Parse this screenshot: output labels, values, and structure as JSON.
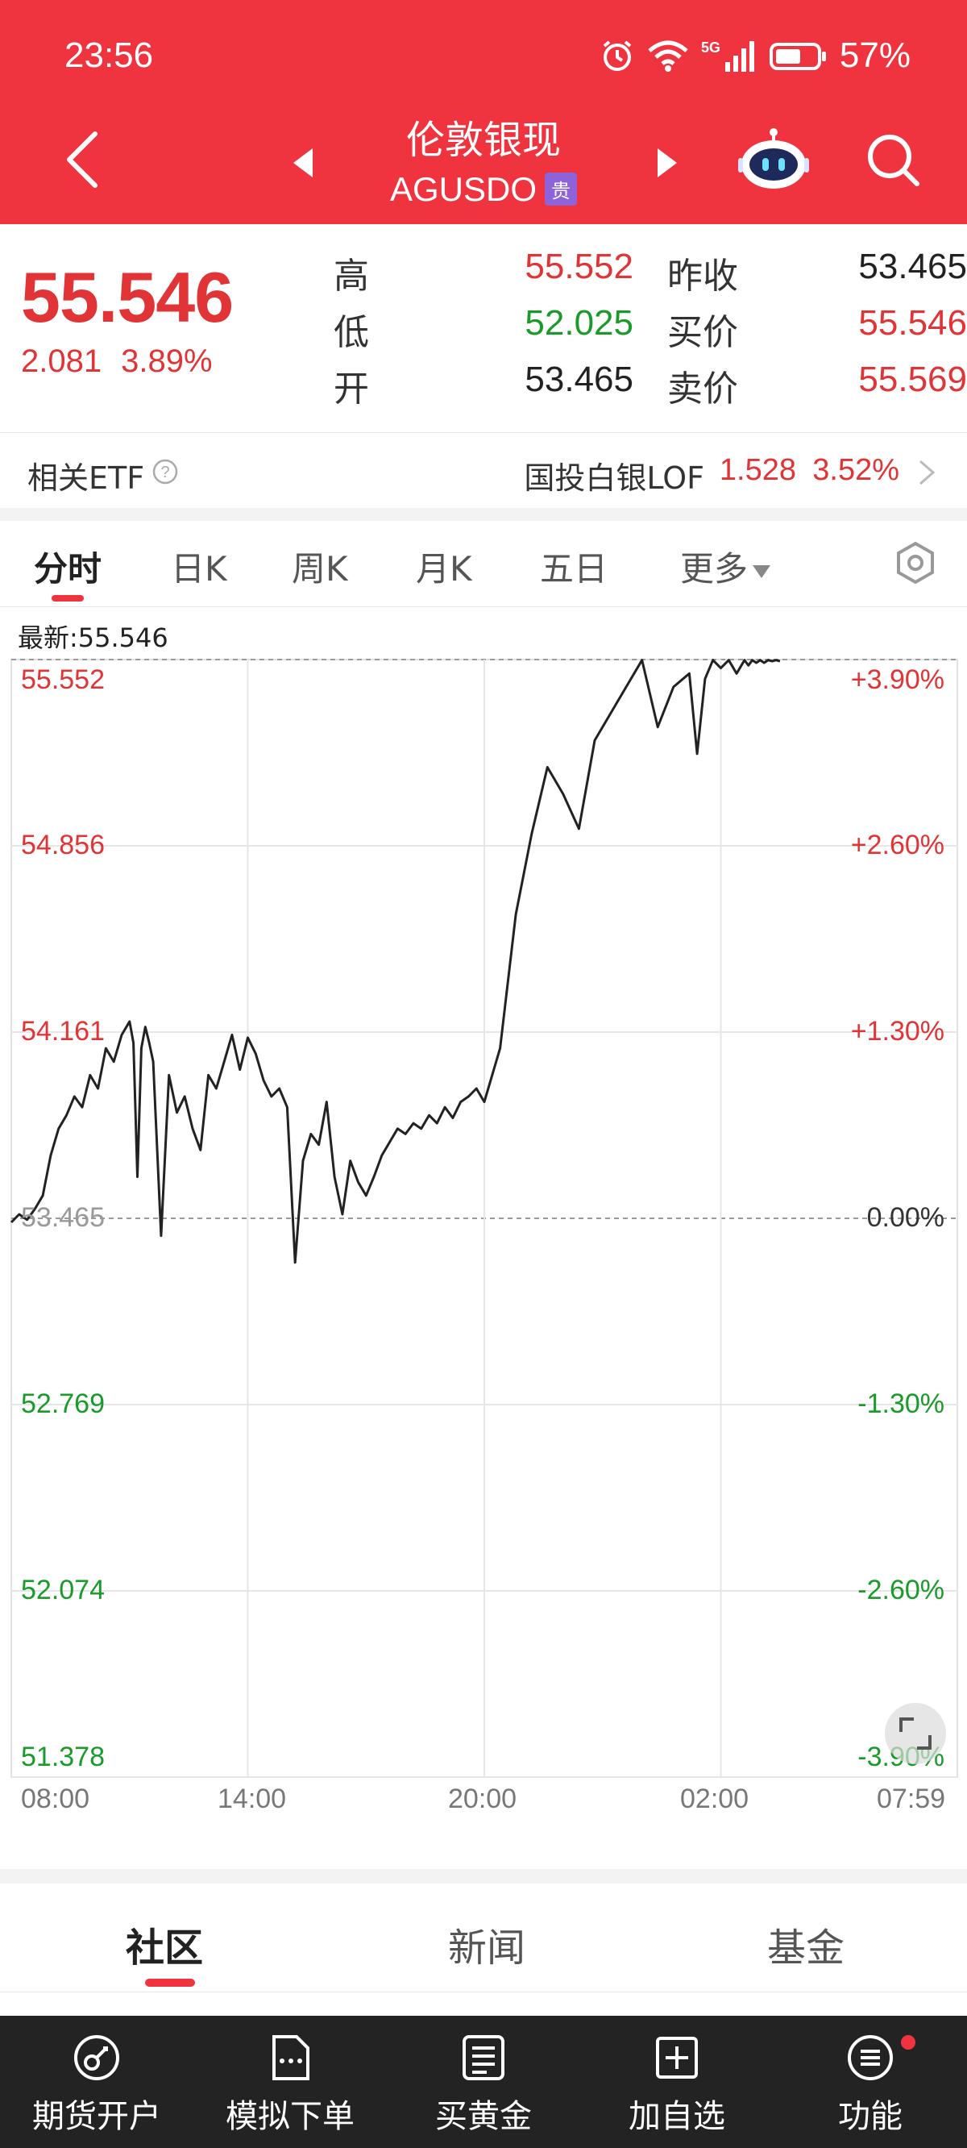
{
  "status_bar": {
    "time": "23:56",
    "network": "5G",
    "battery": "57%"
  },
  "header": {
    "title": "伦敦银现",
    "symbol": "AGUSDO",
    "tag": "贵"
  },
  "quote": {
    "last": "55.546",
    "change": "2.081",
    "change_pct": "3.89%",
    "high_label": "高",
    "high": "55.552",
    "low_label": "低",
    "low": "52.025",
    "open_label": "开",
    "open": "53.465",
    "prev_close_label": "昨收",
    "prev_close": "53.465",
    "bid_label": "买价",
    "bid": "55.546",
    "ask_label": "卖价",
    "ask": "55.569"
  },
  "etf": {
    "label": "相关ETF",
    "name": "国投白银LOF",
    "price": "1.528",
    "pct": "3.52%"
  },
  "tabs": [
    "分时",
    "日K",
    "周K",
    "月K",
    "五日",
    "更多"
  ],
  "chart_header": {
    "latest": "最新:55.546"
  },
  "chart_data": {
    "type": "line",
    "title": "",
    "ylim": [
      51.378,
      55.552
    ],
    "baseline": 53.465,
    "y_ticks_left": [
      "55.552",
      "54.856",
      "54.161",
      "53.465",
      "52.769",
      "52.074",
      "51.378"
    ],
    "y_ticks_right": [
      "+3.90%",
      "+2.60%",
      "+1.30%",
      "0.00%",
      "-1.30%",
      "-2.60%",
      "-3.90%"
    ],
    "x_ticks": [
      "08:00",
      "14:00",
      "20:00",
      "02:00",
      "07:59"
    ],
    "x_domain_hours": [
      0,
      24
    ],
    "series": [
      {
        "x": [
          0.0,
          0.2,
          0.4,
          0.6,
          0.8,
          1.0,
          1.2,
          1.4,
          1.6,
          1.8,
          2.0,
          2.2,
          2.4,
          2.6,
          2.8,
          3.0,
          3.1,
          3.2,
          3.3,
          3.4,
          3.5,
          3.6,
          3.8,
          4.0,
          4.2,
          4.4,
          4.6,
          4.8,
          5.0,
          5.2,
          5.4,
          5.6,
          5.8,
          6.0,
          6.2,
          6.4,
          6.6,
          6.8,
          7.0,
          7.2,
          7.4,
          7.6,
          7.8,
          8.0,
          8.2,
          8.4,
          8.6,
          8.8,
          9.0,
          9.2,
          9.4,
          9.6,
          9.8,
          10.0,
          10.2,
          10.4,
          10.6,
          10.8,
          11.0,
          11.2,
          11.4,
          11.6,
          11.8,
          12.0,
          12.4,
          12.8,
          13.2,
          13.6,
          14.0,
          14.4,
          14.8,
          15.2,
          15.6,
          16.0,
          16.4,
          16.8,
          17.2,
          17.4,
          17.6,
          17.8,
          18.0,
          18.2,
          18.4,
          18.6,
          18.7,
          18.8,
          18.9,
          19.0,
          19.1,
          19.2,
          19.3,
          19.4,
          19.5
        ],
        "values": [
          53.45,
          53.48,
          53.46,
          53.5,
          53.55,
          53.7,
          53.8,
          53.85,
          53.92,
          53.88,
          54.0,
          53.95,
          54.1,
          54.05,
          54.15,
          54.2,
          54.12,
          53.62,
          54.1,
          54.18,
          54.12,
          54.05,
          53.4,
          54.0,
          53.86,
          53.92,
          53.8,
          53.72,
          54.0,
          53.95,
          54.05,
          54.15,
          54.02,
          54.14,
          54.08,
          53.98,
          53.92,
          53.95,
          53.88,
          53.3,
          53.68,
          53.78,
          53.74,
          53.9,
          53.62,
          53.48,
          53.68,
          53.6,
          53.55,
          53.62,
          53.7,
          53.75,
          53.8,
          53.78,
          53.82,
          53.8,
          53.85,
          53.82,
          53.88,
          53.84,
          53.9,
          53.92,
          53.95,
          53.9,
          54.1,
          54.6,
          54.9,
          55.15,
          55.05,
          54.92,
          55.25,
          55.35,
          55.45,
          55.55,
          55.3,
          55.45,
          55.5,
          55.2,
          55.48,
          55.55,
          55.52,
          55.55,
          55.5,
          55.55,
          55.53,
          55.55,
          55.54,
          55.55,
          55.54,
          55.55,
          55.546,
          55.55,
          55.546
        ]
      }
    ]
  },
  "content_tabs": [
    "社区",
    "新闻",
    "基金"
  ],
  "bottom_nav": [
    {
      "label": "期货开户",
      "icon": "account-open-icon"
    },
    {
      "label": "模拟下单",
      "icon": "simulate-order-icon"
    },
    {
      "label": "买黄金",
      "icon": "buy-gold-icon"
    },
    {
      "label": "加自选",
      "icon": "add-watchlist-icon"
    },
    {
      "label": "功能",
      "icon": "menu-icon"
    }
  ],
  "colors": {
    "brand": "#f0343f",
    "up": "#e03436",
    "down": "#1a9a2a",
    "line": "#222222"
  }
}
